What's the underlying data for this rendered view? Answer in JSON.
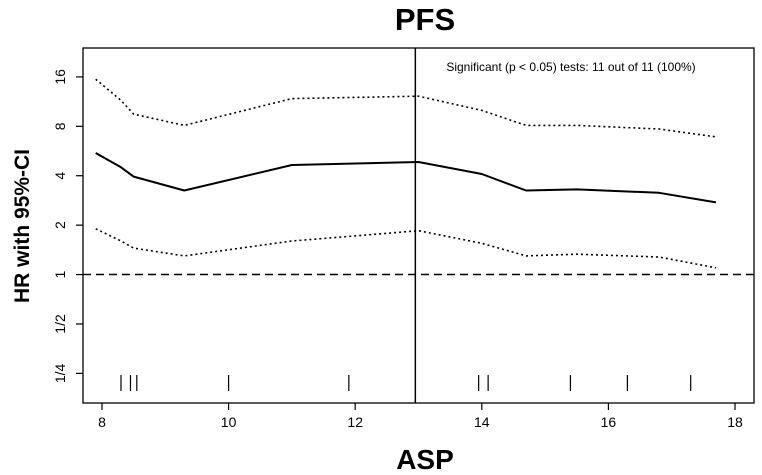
{
  "chart_data": {
    "type": "line",
    "title": "PFS",
    "xlabel": "ASP",
    "ylabel": "HR with 95%-CI",
    "xlim": [
      7.7,
      18.3
    ],
    "ylim": [
      0.165,
      24
    ],
    "y_scale": "log2",
    "grid": false,
    "x_ticks": [
      8,
      10,
      12,
      14,
      16,
      18
    ],
    "x_tick_labels": [
      "8",
      "10",
      "12",
      "14",
      "16",
      "18"
    ],
    "y_ticks": [
      0.25,
      0.5,
      1,
      2,
      4,
      8,
      16
    ],
    "y_tick_labels": [
      "1/4",
      "1/2",
      "1",
      "2",
      "4",
      "8",
      "16"
    ],
    "series": [
      {
        "style": "solid",
        "x": [
          7.9,
          8.3,
          8.5,
          9.3,
          11.0,
          12.0,
          13.0,
          14.0,
          14.7,
          15.5,
          16.8,
          17.7
        ],
        "y": [
          5.5,
          4.5,
          3.95,
          3.25,
          4.65,
          4.75,
          4.85,
          4.1,
          3.25,
          3.3,
          3.15,
          2.75
        ]
      },
      {
        "style": "dotted",
        "x": [
          7.9,
          8.3,
          8.5,
          9.3,
          11.0,
          12.0,
          13.0,
          14.0,
          14.7,
          15.5,
          16.8,
          17.7
        ],
        "y": [
          15.5,
          11.5,
          9.5,
          8.1,
          11.8,
          12.0,
          12.2,
          10.0,
          8.1,
          8.1,
          7.7,
          6.9
        ]
      },
      {
        "style": "dotted",
        "x": [
          7.9,
          8.3,
          8.5,
          9.3,
          11.0,
          12.0,
          13.0,
          14.0,
          14.7,
          15.5,
          16.8,
          17.7
        ],
        "y": [
          1.9,
          1.6,
          1.45,
          1.3,
          1.6,
          1.72,
          1.85,
          1.55,
          1.3,
          1.33,
          1.28,
          1.1
        ]
      }
    ],
    "reference_lines": [
      {
        "axis": "y",
        "value": 1,
        "style": "dashed"
      },
      {
        "axis": "x",
        "value": 12.95,
        "style": "solid"
      }
    ],
    "rug": [
      8.3,
      8.45,
      8.55,
      10.0,
      11.9,
      13.95,
      14.1,
      15.4,
      16.3,
      17.3
    ],
    "annotation": "Significant (p < 0.05) tests: 11 out of 11 (100%)"
  }
}
